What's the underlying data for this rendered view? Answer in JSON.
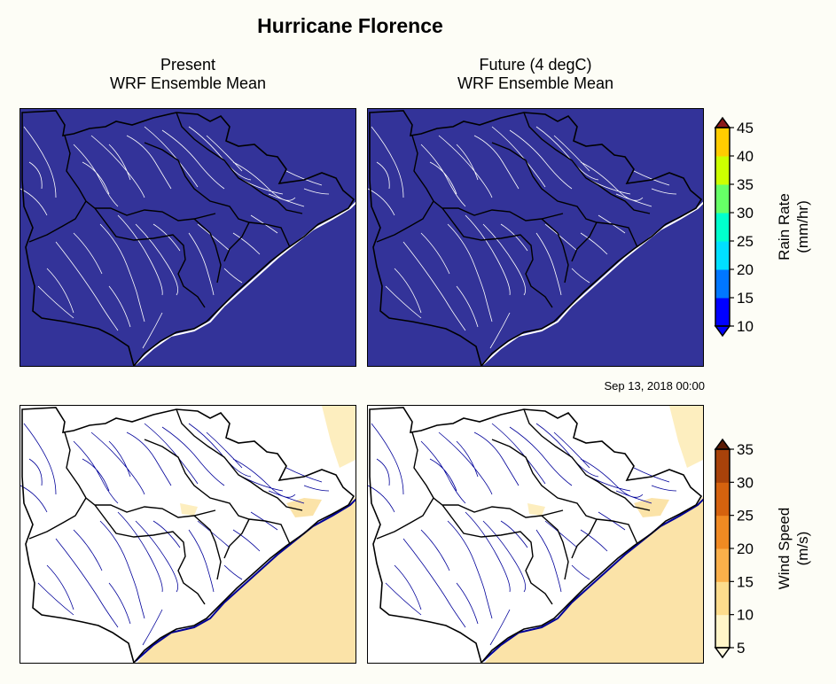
{
  "title": "Hurricane Florence",
  "columns": [
    {
      "line1": "Present",
      "line2": "WRF Ensemble Mean"
    },
    {
      "line1": "Future (4 degC)",
      "line2": "WRF Ensemble Mean"
    }
  ],
  "timestamp": "Sep 13, 2018 00:00",
  "rain_colorbar": {
    "label_line1": "Rain Rate",
    "label_line2": "(mm/hr)",
    "ticks": [
      "10",
      "15",
      "20",
      "25",
      "30",
      "35",
      "40",
      "45"
    ],
    "colors": [
      "#0000ff",
      "#0077ff",
      "#00e0ff",
      "#00ffcc",
      "#66ff66",
      "#ccff00",
      "#ffcc00",
      "#ff8800",
      "#ff2200"
    ],
    "extend_low_color": "#0000ff",
    "extend_high_color": "#8b1a1a"
  },
  "wind_colorbar": {
    "label_line1": "Wind Speed",
    "label_line2": "(m/s)",
    "ticks": [
      "5",
      "10",
      "15",
      "20",
      "25",
      "30",
      "35"
    ],
    "colors": [
      "#fff5c8",
      "#fddc8c",
      "#fbb04a",
      "#f08a22",
      "#d5620e",
      "#a8420a",
      "#7a2a08"
    ],
    "extend_low_color": "#fffae0",
    "extend_high_color": "#5a1a04"
  },
  "rain_panel": {
    "background": "#333399",
    "river_color": "#ffffff",
    "boundary_color": "#000000"
  },
  "wind_panel": {
    "background": "#ffffff",
    "ocean_color": "#fbe3a8",
    "river_color": "#000099",
    "boundary_color": "#000000"
  }
}
